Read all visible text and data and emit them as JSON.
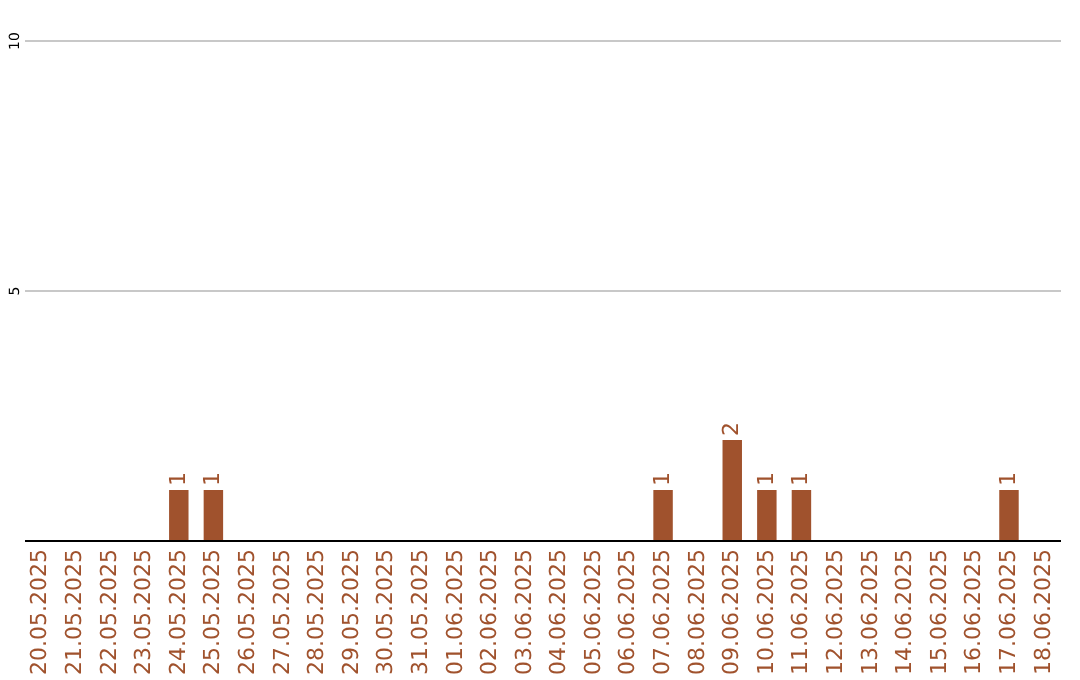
{
  "chart_data": {
    "type": "bar",
    "categories": [
      "20.05.2025",
      "21.05.2025",
      "22.05.2025",
      "23.05.2025",
      "24.05.2025",
      "25.05.2025",
      "26.05.2025",
      "27.05.2025",
      "28.05.2025",
      "29.05.2025",
      "30.05.2025",
      "31.05.2025",
      "01.06.2025",
      "02.06.2025",
      "03.06.2025",
      "04.06.2025",
      "05.06.2025",
      "06.06.2025",
      "07.06.2025",
      "08.06.2025",
      "09.06.2025",
      "10.06.2025",
      "11.06.2025",
      "12.06.2025",
      "13.06.2025",
      "14.06.2025",
      "15.06.2025",
      "16.06.2025",
      "17.06.2025",
      "18.06.2025"
    ],
    "values": [
      0,
      0,
      0,
      0,
      1,
      1,
      0,
      0,
      0,
      0,
      0,
      0,
      0,
      0,
      0,
      0,
      0,
      0,
      1,
      0,
      2,
      1,
      1,
      0,
      0,
      0,
      0,
      0,
      1,
      0
    ],
    "value_labels": [
      null,
      null,
      null,
      null,
      "1",
      "1",
      null,
      null,
      null,
      null,
      null,
      null,
      null,
      null,
      null,
      null,
      null,
      null,
      "1",
      null,
      "2",
      "1",
      "1",
      null,
      null,
      null,
      null,
      null,
      "1",
      null
    ],
    "color": "#a0522d",
    "ylim": [
      0,
      10
    ],
    "yticks": [
      5,
      10
    ],
    "grid": "y"
  }
}
